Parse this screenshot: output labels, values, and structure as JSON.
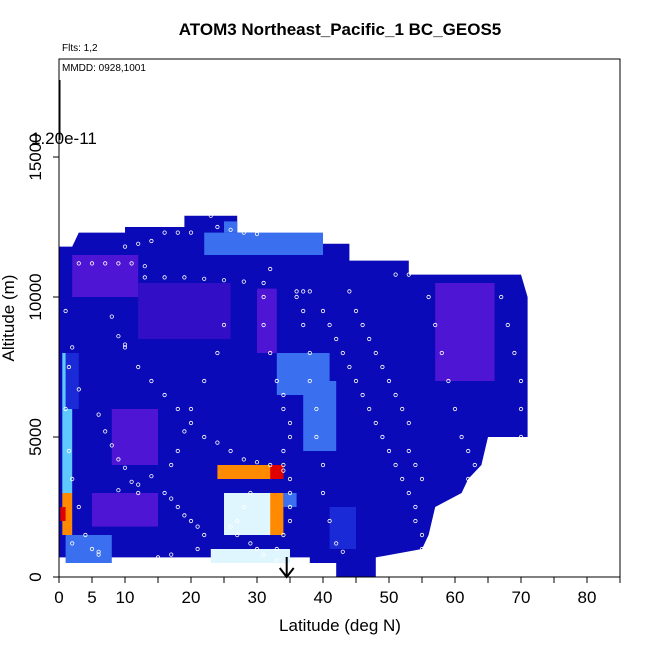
{
  "chart_data": {
    "type": "heatmap",
    "title": "ATOM3 Northeast_Pacific_1 BC_GEOS5",
    "annotations": {
      "flights": "Flts: 1,2",
      "dates": "MMDD: 0928,1001",
      "scale_max": "1.20e-11"
    },
    "xlabel": "Latitude (deg N)",
    "ylabel": "Altitude (m)",
    "xlim": [
      0,
      85
    ],
    "ylim": [
      0,
      18500
    ],
    "xticks": [
      0,
      5,
      10,
      20,
      30,
      40,
      50,
      60,
      70,
      80
    ],
    "xtick_labels": [
      "0",
      "5",
      "10",
      "20",
      "30",
      "40",
      "50",
      "60",
      "70",
      "80"
    ],
    "yticks": [
      0,
      5000,
      10000,
      15000
    ],
    "ytick_labels": [
      "0",
      "5000",
      "10000",
      "15000"
    ],
    "arrow_latitude": 34.5,
    "colorscale": [
      "#0000b4",
      "#1a2ad6",
      "#3a6ff0",
      "#5ec8ff",
      "#dff6ff",
      "#ffe060",
      "#ff8a00",
      "#e00000"
    ],
    "heat_cells": [
      {
        "x": [
          0.5,
          2
        ],
        "y": [
          1500,
          3000
        ],
        "value": 0.9
      },
      {
        "x": [
          0.2,
          1
        ],
        "y": [
          2000,
          2500
        ],
        "value": 1.0
      },
      {
        "x": [
          0.5,
          2
        ],
        "y": [
          3000,
          8000
        ],
        "value": 0.45
      },
      {
        "x": [
          1,
          3
        ],
        "y": [
          6000,
          8000
        ],
        "value": 0.2
      },
      {
        "x": [
          1,
          8
        ],
        "y": [
          500,
          1500
        ],
        "value": 0.25
      },
      {
        "x": [
          23,
          35
        ],
        "y": [
          500,
          1000
        ],
        "value": 0.55
      },
      {
        "x": [
          25,
          33
        ],
        "y": [
          1500,
          3000
        ],
        "value": 0.6
      },
      {
        "x": [
          32,
          34
        ],
        "y": [
          1500,
          3000
        ],
        "value": 0.8
      },
      {
        "x": [
          24,
          34
        ],
        "y": [
          3500,
          4000
        ],
        "value": 0.85
      },
      {
        "x": [
          32,
          34
        ],
        "y": [
          3500,
          4000
        ],
        "value": 1.0
      },
      {
        "x": [
          34,
          36
        ],
        "y": [
          2500,
          3000
        ],
        "value": 0.35
      },
      {
        "x": [
          37,
          42
        ],
        "y": [
          4500,
          7000
        ],
        "value": 0.3
      },
      {
        "x": [
          33,
          41
        ],
        "y": [
          6500,
          8000
        ],
        "value": 0.25
      },
      {
        "x": [
          41,
          45
        ],
        "y": [
          1000,
          2500
        ],
        "value": 0.2
      },
      {
        "x": [
          22,
          40
        ],
        "y": [
          11500,
          12300
        ],
        "value": 0.22
      },
      {
        "x": [
          25,
          27
        ],
        "y": [
          12300,
          12700
        ],
        "value": 0.35
      }
    ],
    "purple_regions": [
      {
        "x": [
          57,
          66
        ],
        "y": [
          7000,
          10500
        ],
        "value": 0.5
      },
      {
        "x": [
          5,
          15
        ],
        "y": [
          1800,
          3000
        ],
        "value": 0.6
      },
      {
        "x": [
          30,
          33
        ],
        "y": [
          8000,
          10300
        ],
        "value": 0.45
      },
      {
        "x": [
          8,
          15
        ],
        "y": [
          4000,
          6000
        ],
        "value": 0.35
      },
      {
        "x": [
          2,
          12
        ],
        "y": [
          10000,
          11500
        ],
        "value": 0.35
      },
      {
        "x": [
          12,
          26
        ],
        "y": [
          8500,
          10500
        ],
        "value": 0.3
      }
    ],
    "flight_track_points": [
      [
        3,
        11200
      ],
      [
        5,
        11200
      ],
      [
        7,
        11200
      ],
      [
        9,
        11200
      ],
      [
        11,
        11200
      ],
      [
        13,
        11100
      ],
      [
        10,
        11800
      ],
      [
        12,
        11900
      ],
      [
        14,
        12000
      ],
      [
        16,
        12300
      ],
      [
        18,
        12300
      ],
      [
        20,
        12300
      ],
      [
        23,
        12900
      ],
      [
        24,
        12500
      ],
      [
        26,
        12400
      ],
      [
        28,
        12300
      ],
      [
        30,
        12250
      ],
      [
        13,
        10700
      ],
      [
        16,
        10700
      ],
      [
        19,
        10700
      ],
      [
        22,
        10650
      ],
      [
        25,
        10600
      ],
      [
        28,
        10550
      ],
      [
        31,
        10500
      ],
      [
        36,
        10200
      ],
      [
        37,
        10200
      ],
      [
        38,
        10200
      ],
      [
        51,
        10800
      ],
      [
        53,
        10800
      ],
      [
        57,
        11200
      ],
      [
        60,
        11100
      ],
      [
        63,
        11000
      ],
      [
        66,
        10950
      ],
      [
        69,
        10900
      ],
      [
        71,
        10850
      ],
      [
        1,
        9500
      ],
      [
        1.5,
        7500
      ],
      [
        1,
        6000
      ],
      [
        1.5,
        4500
      ],
      [
        2,
        3500
      ],
      [
        3,
        2500
      ],
      [
        4,
        1500
      ],
      [
        5,
        1000
      ],
      [
        6,
        800
      ],
      [
        10,
        8200
      ],
      [
        12,
        7500
      ],
      [
        14,
        7000
      ],
      [
        16,
        6500
      ],
      [
        18,
        6000
      ],
      [
        20,
        5500
      ],
      [
        22,
        5000
      ],
      [
        24,
        4800
      ],
      [
        26,
        4500
      ],
      [
        28,
        4200
      ],
      [
        30,
        4100
      ],
      [
        32,
        4000
      ],
      [
        34,
        3800
      ],
      [
        8,
        9300
      ],
      [
        9,
        8600
      ],
      [
        10,
        8300
      ],
      [
        6,
        5800
      ],
      [
        7,
        5200
      ],
      [
        8,
        4700
      ],
      [
        9,
        4200
      ],
      [
        10,
        3900
      ],
      [
        11,
        3400
      ],
      [
        12,
        3000
      ],
      [
        3,
        6700
      ],
      [
        2,
        8200
      ],
      [
        16,
        3000
      ],
      [
        17,
        2800
      ],
      [
        18,
        2500
      ],
      [
        19,
        2200
      ],
      [
        20,
        2000
      ],
      [
        21,
        1800
      ],
      [
        22,
        1500
      ],
      [
        21,
        1000
      ],
      [
        17,
        800
      ],
      [
        15,
        700
      ],
      [
        11,
        600
      ],
      [
        6,
        900
      ],
      [
        2,
        1200
      ],
      [
        25,
        9000
      ],
      [
        24,
        8000
      ],
      [
        22,
        7000
      ],
      [
        20,
        6000
      ],
      [
        19,
        5200
      ],
      [
        18,
        4500
      ],
      [
        17,
        4000
      ],
      [
        14,
        3600
      ],
      [
        12,
        3300
      ],
      [
        9,
        3100
      ],
      [
        32,
        11000
      ],
      [
        31,
        10000
      ],
      [
        31,
        9000
      ],
      [
        32,
        8000
      ],
      [
        33,
        7000
      ],
      [
        34,
        6500
      ],
      [
        34,
        6000
      ],
      [
        35,
        5500
      ],
      [
        35,
        5000
      ],
      [
        34,
        4500
      ],
      [
        34,
        4000
      ],
      [
        35,
        3500
      ],
      [
        35,
        3000
      ],
      [
        35,
        2500
      ],
      [
        35,
        2000
      ],
      [
        34,
        1500
      ],
      [
        33,
        1000
      ],
      [
        36,
        10000
      ],
      [
        37,
        9500
      ],
      [
        37,
        9000
      ],
      [
        38,
        8000
      ],
      [
        38,
        7000
      ],
      [
        39,
        6000
      ],
      [
        39,
        5000
      ],
      [
        40,
        4000
      ],
      [
        40,
        3000
      ],
      [
        41,
        2000
      ],
      [
        42,
        1200
      ],
      [
        43,
        900
      ],
      [
        40,
        9500
      ],
      [
        41,
        9000
      ],
      [
        42,
        8500
      ],
      [
        43,
        8000
      ],
      [
        44,
        7500
      ],
      [
        45,
        7000
      ],
      [
        46,
        6500
      ],
      [
        47,
        6000
      ],
      [
        48,
        5500
      ],
      [
        49,
        5000
      ],
      [
        50,
        4500
      ],
      [
        51,
        4000
      ],
      [
        52,
        3500
      ],
      [
        53,
        3000
      ],
      [
        54,
        2500
      ],
      [
        54,
        2000
      ],
      [
        55,
        1500
      ],
      [
        55,
        1000
      ],
      [
        44,
        10200
      ],
      [
        45,
        9500
      ],
      [
        46,
        9000
      ],
      [
        47,
        8500
      ],
      [
        48,
        8000
      ],
      [
        49,
        7500
      ],
      [
        50,
        7000
      ],
      [
        51,
        6500
      ],
      [
        52,
        6000
      ],
      [
        53,
        5500
      ],
      [
        53,
        4500
      ],
      [
        54,
        4000
      ],
      [
        55,
        3500
      ],
      [
        56,
        10000
      ],
      [
        57,
        9000
      ],
      [
        58,
        8000
      ],
      [
        59,
        7000
      ],
      [
        60,
        6000
      ],
      [
        61,
        5000
      ],
      [
        62,
        4500
      ],
      [
        63,
        4000
      ],
      [
        64,
        3500
      ],
      [
        65,
        3000
      ],
      [
        67,
        10000
      ],
      [
        68,
        9000
      ],
      [
        69,
        8000
      ],
      [
        70,
        7000
      ],
      [
        70,
        6000
      ],
      [
        70,
        5000
      ],
      [
        68,
        4500
      ],
      [
        66,
        4000
      ],
      [
        62,
        3500
      ],
      [
        29,
        3000
      ],
      [
        28,
        2500
      ],
      [
        27,
        2000
      ],
      [
        26,
        1800
      ],
      [
        27,
        1500
      ],
      [
        29,
        1200
      ],
      [
        30,
        1000
      ],
      [
        31,
        800
      ],
      [
        33,
        600
      ]
    ]
  }
}
